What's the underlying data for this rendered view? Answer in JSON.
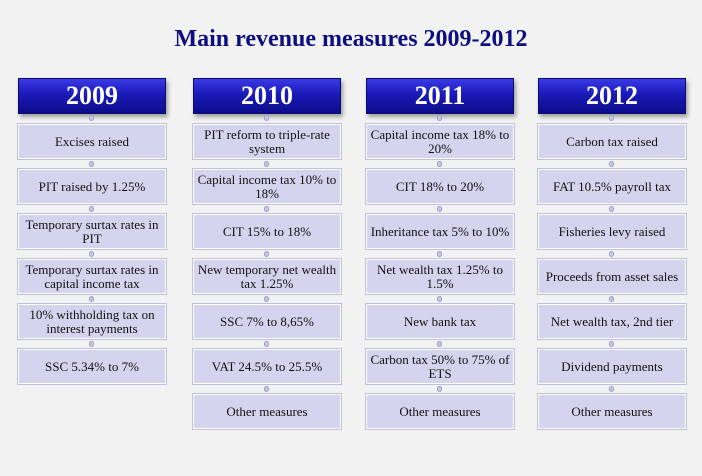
{
  "title": "Main revenue measures 2009-2012",
  "columns": [
    {
      "year": "2009",
      "items": [
        "Excises raised",
        "PIT raised by 1.25%",
        "Temporary surtax rates in PIT",
        "Temporary surtax rates in capital income tax",
        "10% withholding tax on interest payments",
        "SSC 5.34% to 7%"
      ]
    },
    {
      "year": "2010",
      "items": [
        "PIT reform to triple-rate system",
        "Capital income tax 10% to 18%",
        "CIT 15% to 18%",
        "New temporary net wealth tax 1.25%",
        "SSC 7% to 8,65%",
        "VAT 24.5% to 25.5%",
        "Other measures"
      ]
    },
    {
      "year": "2011",
      "items": [
        "Capital income tax 18% to 20%",
        "CIT 18% to 20%",
        "Inheritance tax 5% to 10%",
        "Net wealth tax 1.25% to 1.5%",
        "New bank tax",
        "Carbon tax 50% to 75% of ETS",
        "Other measures"
      ]
    },
    {
      "year": "2012",
      "items": [
        "Carbon tax raised",
        "FAT 10.5% payroll tax",
        "Fisheries levy raised",
        "Proceeds from asset sales",
        "Net wealth tax, 2nd tier",
        "Dividend payments",
        "Other measures"
      ]
    }
  ]
}
